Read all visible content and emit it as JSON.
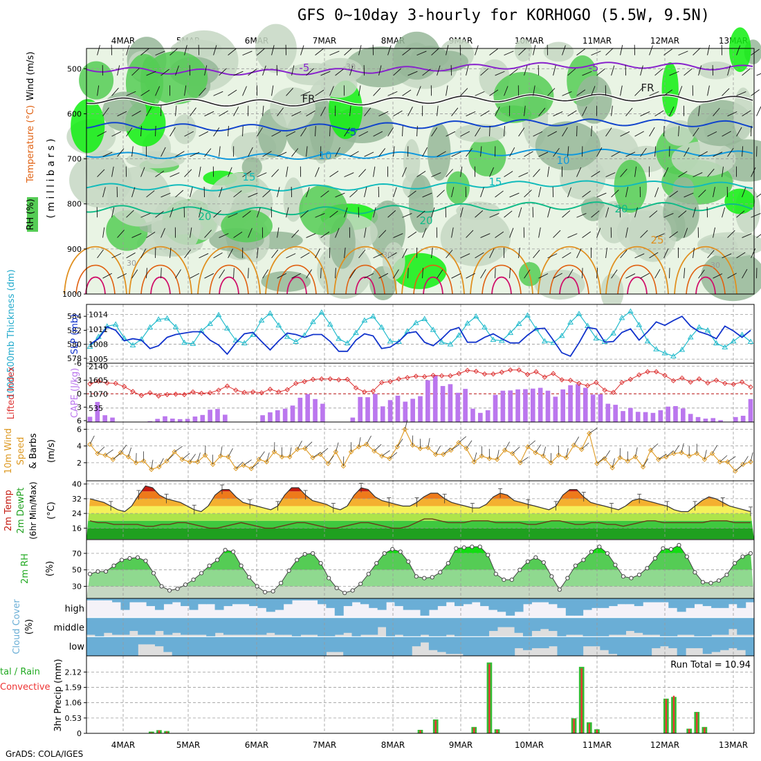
{
  "title": "GFS 0~10day 3-hourly for KORHOGO (5.5W, 9.5N)",
  "footer": "GrADS: COLA/IGES",
  "dates": [
    "4MAR",
    "5MAR",
    "6MAR",
    "7MAR",
    "8MAR",
    "9MAR",
    "10MAR",
    "11MAR",
    "12MAR",
    "13MAR"
  ],
  "colors": {
    "rh_light": "#e9f4e4",
    "rh_mid": "#c6d7c3",
    "rh_dark": "#96b799",
    "rh_green": "#55cc55",
    "rh_bright": "#11ee11",
    "wind_purple": "#8822cc",
    "fr": "#222222",
    "temp_blue": "#1144cc",
    "temp_sky": "#1199dd",
    "temp_cyan": "#11bbbb",
    "temp_teal": "#11bb88",
    "temp_orange": "#e09020",
    "temp_dorange": "#e06010",
    "temp_magenta": "#d0106a",
    "slp": "#22bbcc",
    "thick": "#1133cc",
    "li": "#dd3333",
    "cape": "#bb77ee",
    "wind10": "#dd9922",
    "cloud": "#6aaed6",
    "precip_total": "#33bb33",
    "precip_conv": "#ee3333"
  },
  "panels": {
    "sounding": {
      "ylabel_parts": [
        "RH (%)",
        "Temperature (°C)",
        "Wind (m/s)"
      ],
      "ylabel_unit": "( m i l l i b a r s )",
      "yticks": [
        "500",
        "600",
        "700",
        "800",
        "900",
        "1000"
      ],
      "contour_labels": [
        "-5",
        "-5",
        "FR",
        "FR",
        "-5",
        "10",
        "10",
        "15",
        "15",
        "20",
        "20",
        "20",
        "25",
        "-30",
        "30",
        "30",
        "30"
      ]
    },
    "slp": {
      "ylabel_left": "1000-500mb Thickness (dm)",
      "ylabel_right": "SLP (mb)",
      "yticks_left": [
        "584",
        "582",
        "580",
        "578"
      ],
      "yticks_right": [
        "1014",
        "1011",
        "1008",
        "1005"
      ]
    },
    "cape": {
      "ylabel_left": "Lifted Index",
      "ylabel_right": "CAPE (J/kg)",
      "yticks_left": [
        "-3",
        "0",
        "3",
        "6"
      ],
      "yticks_right": [
        "2140",
        "1605",
        "1070",
        "535"
      ],
      "li_top_label": "-6"
    },
    "wind": {
      "ylabel_a": "10m Wind",
      "ylabel_b": "Speed",
      "ylabel_c": "& Barbs",
      "ylabel_unit": "(m/s)",
      "yticks": [
        "6",
        "4",
        "2"
      ]
    },
    "temp": {
      "ylabel_a": "2m Temp",
      "ylabel_b": "2m DewPt",
      "ylabel_c": "(6hr Min/Max)",
      "ylabel_unit": "(°C)",
      "yticks": [
        "40",
        "32",
        "24",
        "16"
      ]
    },
    "rh": {
      "ylabel": "2m RH",
      "ylabel_unit": "(%)",
      "yticks": [
        "70",
        "50",
        "30"
      ]
    },
    "cloud": {
      "ylabel": "Cloud Cover",
      "ylabel_unit": "(%)",
      "levels": [
        "high",
        "middle",
        "low"
      ]
    },
    "precip": {
      "ylabel_a": "3hr Precip (mm)",
      "ylabel_b": "tal / Rain",
      "ylabel_c": "Convective",
      "yticks": [
        "2.12",
        "1.59",
        "1.06",
        "0.53",
        "0"
      ],
      "run_total": "Run Total = 10.94"
    }
  },
  "chart_data": {
    "type": "meteogram",
    "x": "3-hourly steps from 3 MAR 18Z to 13 MAR 09Z (78 steps)",
    "slp_mb": [
      1007.5,
      1009.5,
      1011.6,
      1012,
      1009.2,
      1007.8,
      1009,
      1011.4,
      1013,
      1013.2,
      1011.5,
      1008.3,
      1008.1,
      1010.7,
      1012.1,
      1013.9,
      1011.2,
      1008.8,
      1008.2,
      1009.9,
      1012.8,
      1014.2,
      1011.8,
      1009.5,
      1008.5,
      1009.8,
      1012.5,
      1014.4,
      1012,
      1009.1,
      1008.2,
      1010.3,
      1012.8,
      1013.6,
      1011.4,
      1008.6,
      1008.5,
      1010.6,
      1012.3,
      1013.1,
      1010.9,
      1008.4,
      1008,
      1009.8,
      1012.2,
      1013.6,
      1011.4,
      1008.9,
      1008.7,
      1010.3,
      1012.1,
      1013.8,
      1011.1,
      1008.6,
      1008.3,
      1009.7,
      1012.4,
      1014.1,
      1011.7,
      1009.2,
      1008.5,
      1010.2,
      1013.3,
      1014.6,
      1011.9,
      1008.6,
      1007,
      1006.2,
      1005.6,
      1006.9,
      1009.4,
      1011.4,
      1010.8,
      1008.2,
      1007.4,
      1008.6,
      1009.9,
      1008.5
    ],
    "thickness_dm": [
      580,
      580.8,
      582.5,
      582,
      580.5,
      580.8,
      580.6,
      579.4,
      579.8,
      581,
      581.4,
      581.6,
      581.8,
      581.8,
      580.6,
      579.9,
      578.6,
      580.2,
      581.5,
      581.7,
      580.4,
      579.2,
      580.5,
      581.6,
      581.4,
      581,
      581.4,
      581.4,
      580.4,
      579,
      579,
      580.6,
      581.5,
      581.2,
      579.4,
      579.6,
      580.4,
      581.6,
      581.8,
      580.3,
      579.8,
      580.8,
      582,
      582.4,
      580.3,
      580.3,
      581,
      581.5,
      580.8,
      580.2,
      580.2,
      581.3,
      582.2,
      582.3,
      580.6,
      578.8,
      578.3,
      580.2,
      582.4,
      582.2,
      580.3,
      580.4,
      581.7,
      582.2,
      580.6,
      581.8,
      583.2,
      582.7,
      583.4,
      584,
      582.6,
      581.8,
      581.4,
      580.8,
      582.6,
      581.9,
      581,
      582
    ],
    "lifted_index": [
      -2.2,
      -2.8,
      -2.4,
      -2.3,
      -1.6,
      -0.5,
      0.4,
      -0.2,
      0.5,
      0.2,
      0.1,
      0.2,
      -0.4,
      -0.1,
      -0.2,
      -0.8,
      -1.7,
      -0.8,
      -0.3,
      -0.4,
      -0.2,
      -1,
      -0.4,
      -0.9,
      -2.3,
      -2.7,
      -3.2,
      -3.3,
      -3.3,
      -3.1,
      -3.2,
      -1.3,
      -0.4,
      -0.6,
      -2.5,
      -2.7,
      -3.3,
      -3.6,
      -3.9,
      -3.8,
      -4.1,
      -4,
      -4,
      -4.5,
      -5.2,
      -5,
      -4.4,
      -4.4,
      -4.8,
      -5.3,
      -5.3,
      -4.3,
      -4.9,
      -3.7,
      -4.5,
      -3.1,
      -3,
      -2.3,
      -1.8,
      -2.5,
      -0.8,
      -0.3,
      -2.5,
      -3.2,
      -4.2,
      -4.9,
      -4.9,
      -4.1,
      -2.9,
      -3.5,
      -2.6,
      -3.3,
      -2.4,
      -3,
      -2.3,
      -2.1,
      -2.6,
      -1.5
    ],
    "cape_jkg": [
      200,
      770,
      260,
      170,
      0,
      0,
      0,
      0,
      30,
      120,
      220,
      130,
      110,
      120,
      210,
      270,
      470,
      500,
      280,
      0,
      0,
      0,
      0,
      260,
      370,
      450,
      510,
      630,
      930,
      1070,
      880,
      700,
      0,
      0,
      0,
      170,
      960,
      950,
      1080,
      600,
      840,
      1010,
      780,
      890,
      990,
      1600,
      1800,
      1380,
      1450,
      1120,
      1270,
      510,
      350,
      450,
      1040,
      1200,
      1210,
      1250,
      1260,
      1280,
      1310,
      1200,
      970,
      1250,
      1410,
      1450,
      1310,
      1050,
      1060,
      700,
      660,
      420,
      540,
      390,
      380,
      350,
      450,
      590,
      610,
      520,
      310,
      190,
      130,
      150,
      70,
      0,
      190,
      240,
      880
    ],
    "wind10m_ms": [
      4.2,
      3.1,
      2.9,
      2.4,
      3.2,
      2.7,
      2,
      2.2,
      1.2,
      1.5,
      2.2,
      3.3,
      2.4,
      2.1,
      2.1,
      2.9,
      1.8,
      2.8,
      2.7,
      1.3,
      1.7,
      1.3,
      2.4,
      2.1,
      3.3,
      2.7,
      2.7,
      3.6,
      3.7,
      2.6,
      3,
      1.9,
      3.3,
      1.6,
      3.3,
      3.9,
      4.2,
      3.4,
      2.8,
      2.5,
      3.9,
      6,
      4.1,
      3.7,
      3.8,
      3,
      3,
      3.5,
      4.4,
      3.7,
      2.1,
      2.8,
      2.5,
      2.4,
      3.5,
      3.1,
      2,
      3.9,
      3.2,
      2.8,
      2,
      2.9,
      2.6,
      4.1,
      3.6,
      5.5,
      1.9,
      2.5,
      1.4,
      2.6,
      2.2,
      2.7,
      1.5,
      3.5,
      2.4,
      2.7,
      3.1,
      3.2,
      2.8,
      3.1,
      2.4,
      3.1,
      2.1,
      2.1,
      1,
      1.8,
      2.1
    ],
    "temp2m_c": [
      32,
      31,
      30,
      28,
      26,
      25,
      28,
      34,
      39,
      38,
      34,
      32,
      31,
      30,
      28,
      26,
      25,
      28,
      34,
      37,
      37,
      33,
      30,
      29,
      28,
      27,
      26,
      28,
      34,
      38,
      38,
      34,
      31,
      30,
      29,
      27,
      26,
      28,
      34,
      38,
      37,
      33,
      31,
      30,
      29,
      28,
      28,
      30,
      33,
      35,
      35,
      32,
      30,
      29,
      28,
      27,
      27,
      29,
      33,
      35,
      34,
      31,
      30,
      29,
      28,
      27,
      26,
      28,
      34,
      37,
      37,
      33,
      30,
      29,
      28,
      27,
      26,
      28,
      31,
      32,
      31,
      30,
      29,
      28,
      26,
      25,
      25,
      28,
      31,
      33,
      32,
      30,
      28,
      27,
      26,
      25
    ],
    "dewpt2m_c": [
      20,
      19,
      19,
      18,
      18,
      18,
      18,
      17,
      17,
      18,
      18,
      19,
      19,
      18,
      17,
      16,
      16,
      17,
      18,
      19,
      18,
      17,
      16,
      16,
      17,
      18,
      19,
      19,
      18,
      17,
      16,
      16,
      17,
      18,
      19,
      19,
      18,
      17,
      16,
      16,
      17,
      19,
      21,
      21,
      20,
      19,
      19,
      19,
      20,
      20,
      20,
      19,
      19,
      19,
      19,
      18,
      18,
      19,
      20,
      20,
      19,
      18,
      18,
      19,
      19,
      18,
      18,
      17,
      18,
      19,
      20,
      20,
      19,
      19,
      19,
      19,
      19,
      19,
      20,
      20,
      20,
      19,
      19,
      19
    ],
    "rh2m_pct": [
      45,
      48,
      48,
      55,
      62,
      64,
      65,
      61,
      46,
      30,
      25,
      27,
      32,
      38,
      46,
      55,
      62,
      74,
      72,
      55,
      41,
      30,
      23,
      24,
      34,
      49,
      62,
      69,
      70,
      58,
      40,
      28,
      22,
      25,
      33,
      45,
      58,
      70,
      75,
      72,
      60,
      42,
      40,
      41,
      47,
      58,
      76,
      77,
      78,
      78,
      68,
      45,
      38,
      38,
      50,
      60,
      65,
      59,
      42,
      26,
      40,
      55,
      62,
      72,
      78,
      70,
      56,
      42,
      40,
      44,
      52,
      64,
      76,
      75,
      80,
      66,
      47,
      35,
      34,
      37,
      44,
      58,
      66,
      70
    ],
    "cloud_high": [
      0.1,
      0.1,
      0.1,
      0.2,
      0.6,
      0.2,
      0.2,
      0.4,
      0.6,
      0.3,
      0.2,
      0.4,
      0.6,
      0.3,
      0.3,
      0.6,
      0.4,
      0.3,
      0.3,
      0.4,
      0.5,
      0.7,
      0.6,
      0.3,
      0.1,
      0.1,
      0.1,
      0.3,
      0.5,
      0.9,
      0.4,
      0.2,
      0.3,
      0.5,
      0.6,
      0.2,
      0.4,
      0.6,
      0.6,
      0.9,
      0.6,
      0.4,
      0.2,
      0.4,
      0.3,
      0.2,
      0.4,
      0.6,
      0.7,
      0.9,
      0.7,
      0.3,
      0.2,
      0.2,
      0.3,
      0.5,
      0.9,
      0.9,
      0.6,
      0.5,
      0.5,
      0.4,
      0.3,
      0.3,
      0.4,
      0.2,
      0.2,
      0.2,
      0.5,
      0.7,
      0.5,
      0.3,
      0.4,
      0.5,
      0.5,
      0.3,
      0.5,
      0.2
    ],
    "cloud_mid": [
      0.9,
      1,
      0.8,
      0.9,
      0.9,
      0.7,
      0.9,
      0.9,
      0.7,
      0.9,
      0.8,
      0.9,
      0.9,
      0.9,
      1,
      0.8,
      0.9,
      0.9,
      0.9,
      0.9,
      0.9,
      0.8,
      0.9,
      0.9,
      1,
      0.9,
      0.9,
      1,
      1,
      0.9,
      0.8,
      1,
      0.9,
      0.9,
      0.5,
      1,
      0.9,
      1,
      1,
      0.9,
      1,
      1,
      0.9,
      1,
      1,
      1,
      1,
      0.7,
      0.5,
      0.5,
      0.8,
      1,
      0.7,
      0.6,
      0.7,
      1,
      0.9,
      0.9,
      1,
      1,
      1,
      0.9,
      0.9,
      0.7,
      0.8,
      0.9,
      0.9,
      1,
      1,
      0.9,
      0.9,
      1,
      1,
      0.9,
      0.9,
      0.6,
      0.9,
      0.9
    ],
    "cloud_low": [
      1,
      1,
      1,
      1,
      1,
      1,
      0.4,
      0.4,
      0.5,
      0.8,
      1,
      1,
      1,
      1,
      1,
      1,
      1,
      1,
      1,
      1,
      1,
      1,
      1,
      1,
      1,
      1,
      1,
      1,
      0.8,
      0.8,
      1,
      1,
      1,
      1,
      1,
      1,
      1,
      1,
      0.5,
      0.3,
      0.7,
      0.8,
      0.9,
      0.9,
      1,
      1,
      1,
      1,
      1,
      1,
      0.6,
      0.7,
      0.6,
      0.6,
      0.5,
      1,
      1,
      1,
      0.5,
      0.5,
      0.7,
      0.9,
      1,
      1,
      1,
      1,
      0.6,
      0.5,
      0.6,
      1,
      0.6,
      0.6,
      0.9,
      0.8,
      0.7,
      0.6,
      0.7,
      1
    ],
    "precip_total_mm": [
      0,
      0,
      0,
      0,
      0,
      0,
      0,
      0,
      0.06,
      0.11,
      0.08,
      0,
      0,
      0,
      0,
      0,
      0,
      0,
      0,
      0,
      0,
      0,
      0,
      0,
      0,
      0,
      0,
      0,
      0,
      0,
      0,
      0,
      0,
      0,
      0,
      0,
      0,
      0,
      0,
      0,
      0,
      0,
      0,
      0.12,
      0,
      0.48,
      0,
      0,
      0,
      0,
      0.22,
      0,
      2.45,
      0.14,
      0,
      0,
      0,
      0,
      0,
      0,
      0,
      0,
      0,
      0.52,
      2.3,
      0.38,
      0.14,
      0,
      0,
      0,
      0,
      0,
      0,
      0,
      0,
      1.2,
      1.26,
      0,
      0.16,
      0.74,
      0.22,
      0,
      0,
      0,
      0,
      0,
      0
    ],
    "precip_conv_mm": [
      0,
      0,
      0,
      0,
      0,
      0,
      0,
      0,
      0.03,
      0.1,
      0.06,
      0,
      0,
      0,
      0,
      0,
      0,
      0,
      0,
      0,
      0,
      0,
      0,
      0,
      0,
      0,
      0,
      0,
      0,
      0,
      0,
      0,
      0,
      0,
      0,
      0,
      0,
      0,
      0,
      0,
      0,
      0,
      0,
      0.1,
      0,
      0.45,
      0,
      0,
      0,
      0,
      0.2,
      0,
      2.4,
      0.12,
      0,
      0,
      0,
      0,
      0,
      0,
      0,
      0,
      0,
      0.5,
      2.25,
      0.34,
      0.12,
      0,
      0,
      0,
      0,
      0,
      0,
      0,
      0,
      1.18,
      1.3,
      0,
      0.15,
      0.72,
      0.2,
      0,
      0,
      0,
      0,
      0,
      0
    ]
  }
}
